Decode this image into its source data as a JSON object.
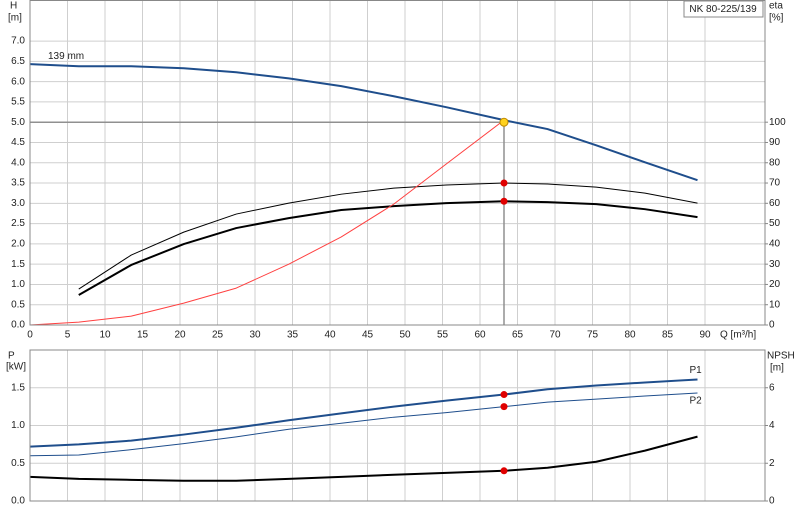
{
  "chart_data": [
    {
      "type": "line",
      "title": "NK 80-225/139",
      "y_label": "H",
      "y_unit": "[m]",
      "y2_label": "eta",
      "y2_unit": "[%]",
      "x_label": "Q [m³/h]",
      "xlim": [
        0,
        98
      ],
      "ylim": [
        0,
        8
      ],
      "y2lim": [
        0,
        160
      ],
      "grid": true,
      "xticks": [
        0,
        5,
        10,
        15,
        20,
        25,
        30,
        35,
        40,
        45,
        50,
        55,
        60,
        65,
        70,
        75,
        80,
        85,
        90
      ],
      "yticks": [
        {
          "value": 0,
          "label": "0.0"
        },
        0.5,
        {
          "value": 1,
          "label": "1.0"
        },
        1.5,
        {
          "value": 2,
          "label": "2.0"
        },
        2.5,
        {
          "value": 3,
          "label": "3.0"
        },
        3.5,
        {
          "value": 4,
          "label": "4.0"
        },
        4.5,
        {
          "value": 5,
          "label": "5.0"
        },
        5.5,
        {
          "value": 6,
          "label": "6.0"
        },
        6.5,
        {
          "value": 7,
          "label": "7.0"
        }
      ],
      "y2ticks": [
        0,
        10,
        20,
        30,
        40,
        50,
        60,
        70,
        80,
        90,
        100
      ],
      "series": [
        {
          "name": "139 mm",
          "color": "#1f4e8c",
          "width": 2,
          "x": [
            0,
            6.5,
            13.5,
            20.5,
            27.5,
            34.5,
            41.5,
            48.5,
            55.5,
            63.2,
            69,
            75.5,
            82,
            89
          ],
          "values": [
            6.43,
            6.38,
            6.38,
            6.33,
            6.23,
            6.08,
            5.89,
            5.64,
            5.37,
            5.05,
            4.83,
            4.43,
            4.01,
            3.57
          ]
        },
        {
          "color": "#000000",
          "width": 1,
          "axis": "y2",
          "x": [
            6.5,
            13.5,
            20.5,
            27.5,
            34.5,
            41.5,
            48.5,
            55.5,
            63.2,
            69,
            75.5,
            82,
            89
          ],
          "values": [
            17.7,
            34.5,
            45.8,
            54.7,
            60.1,
            64.5,
            67.5,
            69,
            70,
            69.5,
            68,
            65,
            60.1
          ]
        },
        {
          "color": "#000000",
          "width": 2,
          "axis": "y2",
          "x": [
            6.5,
            13.5,
            20.5,
            27.5,
            34.5,
            41.5,
            48.5,
            55.5,
            63.2,
            69,
            75.5,
            82,
            89
          ],
          "values": [
            14.8,
            29.6,
            39.9,
            47.8,
            52.7,
            56.7,
            58.6,
            60.1,
            61,
            60.6,
            59.6,
            57.1,
            53.2
          ]
        },
        {
          "color": "#ff4040",
          "width": 1,
          "x": [
            0,
            6.5,
            13.5,
            20.5,
            27.5,
            34.5,
            41.5,
            48.5,
            55.5,
            63.2
          ],
          "values": [
            0,
            0.07,
            0.22,
            0.54,
            0.91,
            1.5,
            2.17,
            2.98,
            3.97,
            5.05
          ]
        },
        {
          "color": "#e00000",
          "mode": "markers",
          "axis": "y2",
          "x": [
            63.2,
            63.2
          ],
          "values": [
            70,
            61
          ]
        }
      ],
      "duty_point": {
        "x": 63.2,
        "y": 5.0,
        "color": "#ffd21f"
      }
    },
    {
      "type": "line",
      "y_label": "P",
      "y_unit": "[kW]",
      "y2_label": "NPSH",
      "y2_unit": "[m]",
      "xlim": [
        0,
        98
      ],
      "ylim": [
        0,
        2
      ],
      "y2lim": [
        0,
        8
      ],
      "grid": true,
      "xticks": [
        0,
        5,
        10,
        15,
        20,
        25,
        30,
        35,
        40,
        45,
        50,
        55,
        60,
        65,
        70,
        75,
        80,
        85,
        90
      ],
      "yticks": [
        {
          "value": 0,
          "label": "0.0"
        },
        0.5,
        {
          "value": 1,
          "label": "1.0"
        },
        1.5
      ],
      "y2ticks": [
        0,
        2,
        4,
        6
      ],
      "series": [
        {
          "name": "P1",
          "color": "#1f4e8c",
          "width": 2,
          "x": [
            0,
            6.5,
            13.5,
            20.5,
            27.5,
            34.5,
            41.5,
            48.5,
            55.5,
            63.2,
            69,
            75.5,
            82,
            89
          ],
          "values": [
            0.72,
            0.75,
            0.8,
            0.88,
            0.97,
            1.07,
            1.16,
            1.25,
            1.33,
            1.41,
            1.48,
            1.53,
            1.57,
            1.61
          ]
        },
        {
          "name": "P2",
          "color": "#1f4e8c",
          "width": 1,
          "x": [
            0,
            6.5,
            13.5,
            20.5,
            27.5,
            34.5,
            41.5,
            48.5,
            55.5,
            63.2,
            69,
            75.5,
            82,
            89
          ],
          "values": [
            0.6,
            0.61,
            0.68,
            0.76,
            0.85,
            0.95,
            1.03,
            1.11,
            1.17,
            1.25,
            1.31,
            1.35,
            1.39,
            1.43
          ]
        },
        {
          "color": "#000000",
          "width": 2,
          "axis": "y2",
          "x": [
            0,
            6.5,
            13.5,
            20.5,
            27.5,
            34.5,
            41.5,
            48.5,
            55.5,
            63.2,
            69,
            75.5,
            82,
            89
          ],
          "values": [
            1.28,
            1.17,
            1.12,
            1.07,
            1.07,
            1.17,
            1.28,
            1.39,
            1.49,
            1.6,
            1.76,
            2.08,
            2.67,
            3.41
          ]
        },
        {
          "color": "#e00000",
          "mode": "markers",
          "x": [
            63.2,
            63.2
          ],
          "values": [
            1.41,
            1.25
          ]
        },
        {
          "color": "#e00000",
          "mode": "markers",
          "axis": "y2",
          "x": [
            63.2
          ],
          "values": [
            1.6
          ]
        }
      ]
    }
  ]
}
